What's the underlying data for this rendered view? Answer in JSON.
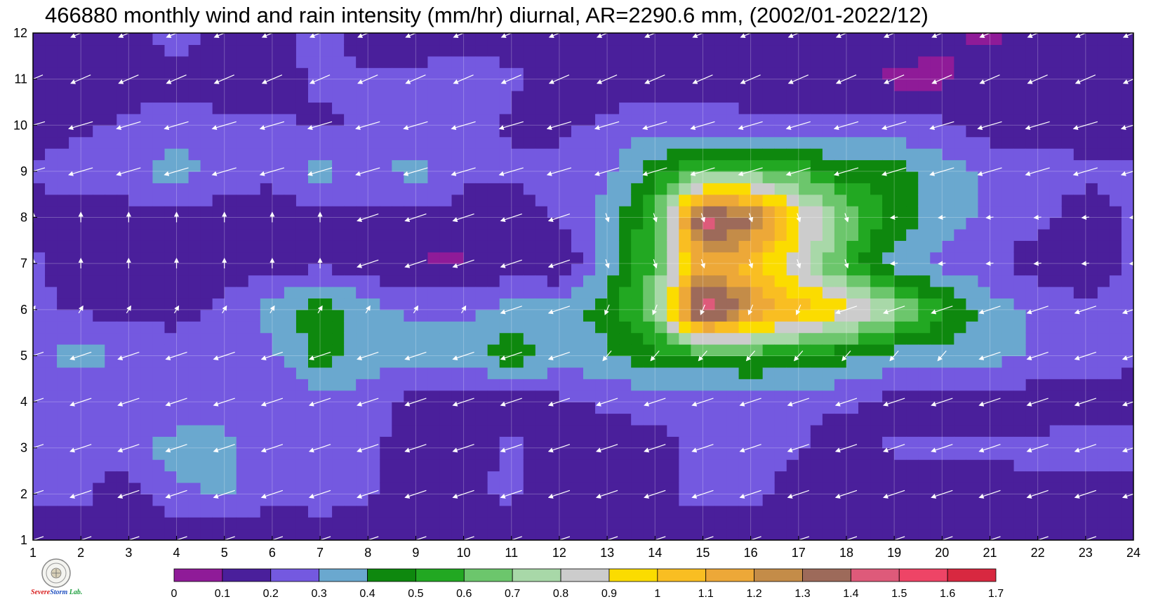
{
  "chart_data": {
    "type": "heatmap",
    "title": "466880 monthly wind and rain intensity (mm/hr) diurnal, AR=2290.6 mm, (2002/01-2022/12)",
    "x_ticks": [
      "1",
      "2",
      "3",
      "4",
      "5",
      "6",
      "7",
      "8",
      "9",
      "10",
      "11",
      "12",
      "13",
      "14",
      "15",
      "16",
      "17",
      "18",
      "19",
      "20",
      "21",
      "22",
      "23",
      "24"
    ],
    "y_ticks": [
      "1",
      "2",
      "3",
      "4",
      "5",
      "6",
      "7",
      "8",
      "9",
      "10",
      "11",
      "12"
    ],
    "xlim": [
      1,
      24
    ],
    "ylim": [
      1,
      12
    ],
    "grid": true,
    "legend": "colorbar-bottom",
    "levels": [
      0,
      0.1,
      0.2,
      0.3,
      0.4,
      0.5,
      0.6,
      0.7,
      0.8,
      0.9,
      1,
      1.1,
      1.2,
      1.3,
      1.4,
      1.5,
      1.6,
      1.7
    ],
    "level_labels": [
      "0",
      "0.1",
      "0.2",
      "0.3",
      "0.4",
      "0.5",
      "0.6",
      "0.7",
      "0.8",
      "0.9",
      "1",
      "1.1",
      "1.2",
      "1.3",
      "1.4",
      "1.5",
      "1.6",
      "1.7"
    ],
    "colors": [
      "#8f1b98",
      "#4a1f9b",
      "#7459e0",
      "#6aa8cf",
      "#0e880e",
      "#22a822",
      "#6cc66c",
      "#a8d8a8",
      "#cccccc",
      "#fbdc00",
      "#f9be22",
      "#eda838",
      "#c48c48",
      "#9d6a5a",
      "#de5a7a",
      "#ee4466",
      "#d82840"
    ],
    "rows_by_month": [
      [
        0.15,
        0.15,
        0.12,
        0.12,
        0.13,
        0.14,
        0.18,
        0.12,
        0.12,
        0.12,
        0.15,
        0.12,
        0.15,
        0.15,
        0.09,
        0.12,
        0.09,
        0.15,
        0.18,
        0.12,
        0.12,
        0.12,
        0.12,
        0.12
      ],
      [
        0.22,
        0.22,
        0.15,
        0.27,
        0.31,
        0.22,
        0.22,
        0.22,
        0.12,
        0.18,
        0.22,
        0.12,
        0.12,
        0.15,
        0.25,
        0.25,
        0.15,
        0.12,
        0.12,
        0.12,
        0.15,
        0.18,
        0.12,
        0.12
      ],
      [
        0.22,
        0.22,
        0.25,
        0.35,
        0.35,
        0.22,
        0.22,
        0.22,
        0.15,
        0.15,
        0.22,
        0.15,
        0.15,
        0.18,
        0.22,
        0.22,
        0.22,
        0.12,
        0.22,
        0.22,
        0.22,
        0.22,
        0.25,
        0.25
      ],
      [
        0.25,
        0.22,
        0.22,
        0.22,
        0.22,
        0.22,
        0.25,
        0.25,
        0.15,
        0.15,
        0.15,
        0.18,
        0.22,
        0.22,
        0.22,
        0.22,
        0.22,
        0.22,
        0.15,
        0.15,
        0.15,
        0.15,
        0.15,
        0.15
      ],
      [
        0.27,
        0.35,
        0.27,
        0.27,
        0.27,
        0.27,
        0.45,
        0.35,
        0.35,
        0.35,
        0.45,
        0.35,
        0.38,
        0.48,
        0.48,
        0.52,
        0.48,
        0.42,
        0.35,
        0.35,
        0.35,
        0.27,
        0.27,
        0.22
      ],
      [
        0.22,
        0.18,
        0.18,
        0.15,
        0.22,
        0.35,
        0.45,
        0.35,
        0.27,
        0.27,
        0.35,
        0.35,
        0.45,
        0.68,
        1.55,
        1.25,
        1.05,
        0.95,
        0.75,
        0.52,
        0.35,
        0.27,
        0.22,
        0.22
      ],
      [
        0.22,
        0.15,
        0.15,
        0.15,
        0.15,
        0.15,
        0.18,
        0.15,
        0.09,
        0.09,
        0.15,
        0.09,
        0.35,
        0.62,
        1.15,
        1.05,
        0.82,
        0.55,
        0.35,
        0.27,
        0.22,
        0.15,
        0.15,
        0.22
      ],
      [
        0.15,
        0.15,
        0.15,
        0.15,
        0.15,
        0.15,
        0.15,
        0.18,
        0.18,
        0.15,
        0.15,
        0.22,
        0.35,
        0.58,
        1.45,
        1.35,
        0.95,
        0.68,
        0.45,
        0.35,
        0.27,
        0.22,
        0.15,
        0.22
      ],
      [
        0.22,
        0.25,
        0.28,
        0.35,
        0.27,
        0.22,
        0.35,
        0.25,
        0.35,
        0.22,
        0.22,
        0.22,
        0.27,
        0.45,
        0.65,
        0.62,
        0.58,
        0.45,
        0.45,
        0.35,
        0.27,
        0.27,
        0.22,
        0.22
      ],
      [
        0.15,
        0.18,
        0.22,
        0.25,
        0.22,
        0.22,
        0.18,
        0.22,
        0.22,
        0.25,
        0.18,
        0.18,
        0.22,
        0.27,
        0.25,
        0.22,
        0.22,
        0.22,
        0.22,
        0.22,
        0.15,
        0.15,
        0.15,
        0.15
      ],
      [
        0.15,
        0.15,
        0.15,
        0.15,
        0.15,
        0.15,
        0.22,
        0.22,
        0.22,
        0.25,
        0.22,
        0.15,
        0.15,
        0.15,
        0.15,
        0.15,
        0.15,
        0.15,
        0.08,
        0.08,
        0.15,
        0.15,
        0.15,
        0.15
      ],
      [
        0.15,
        0.15,
        0.15,
        0.25,
        0.15,
        0.15,
        0.25,
        0.15,
        0.15,
        0.15,
        0.15,
        0.15,
        0.15,
        0.15,
        0.15,
        0.15,
        0.15,
        0.15,
        0.15,
        0.12,
        0.08,
        0.15,
        0.15,
        0.15
      ]
    ],
    "wind_arrows": "white vectors per grid cell: mostly pointing left-down (easterly), upward (southerly) near month 7-8 hours 1-7"
  },
  "logo": {
    "line1": "Severe",
    "line2": "Storm",
    "line3": "Lab."
  }
}
